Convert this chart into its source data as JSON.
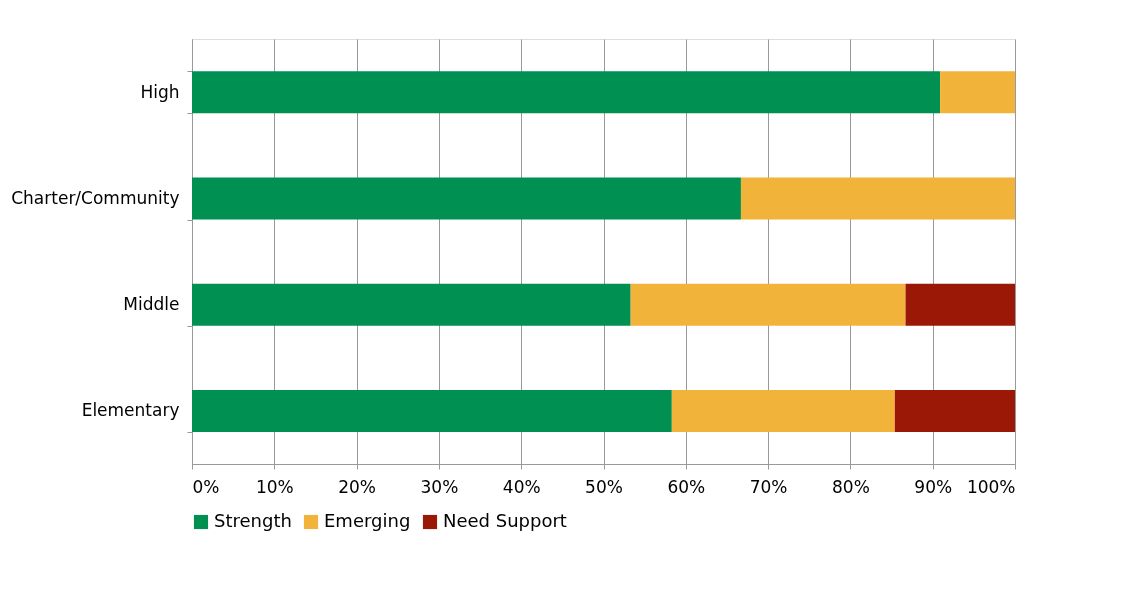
{
  "chart_data": {
    "type": "bar",
    "orientation": "horizontal",
    "stacked": true,
    "categories": [
      "High",
      "Charter/Community",
      "Middle",
      "Elementary"
    ],
    "series": [
      {
        "name": "Strength",
        "color": "#009051",
        "values": [
          90.9,
          66.7,
          53.3,
          58.3
        ]
      },
      {
        "name": "Emerging",
        "color": "#f2b33a",
        "values": [
          9.1,
          33.3,
          33.4,
          27.1
        ]
      },
      {
        "name": "Need Support",
        "color": "#9b1806",
        "values": [
          0,
          0,
          13.3,
          14.6
        ]
      }
    ],
    "xlim": [
      0,
      100
    ],
    "xticks": [
      {
        "value": 0,
        "label": "0%"
      },
      {
        "value": 10,
        "label": "10%"
      },
      {
        "value": 20,
        "label": "20%"
      },
      {
        "value": 30,
        "label": "30%"
      },
      {
        "value": 40,
        "label": "40%"
      },
      {
        "value": 50,
        "label": "50%"
      },
      {
        "value": 60,
        "label": "60%"
      },
      {
        "value": 70,
        "label": "70%"
      },
      {
        "value": 80,
        "label": "80%"
      },
      {
        "value": 90,
        "label": "90%"
      },
      {
        "value": 100,
        "label": "100%"
      }
    ],
    "grid": "x",
    "legend": "bottom"
  }
}
